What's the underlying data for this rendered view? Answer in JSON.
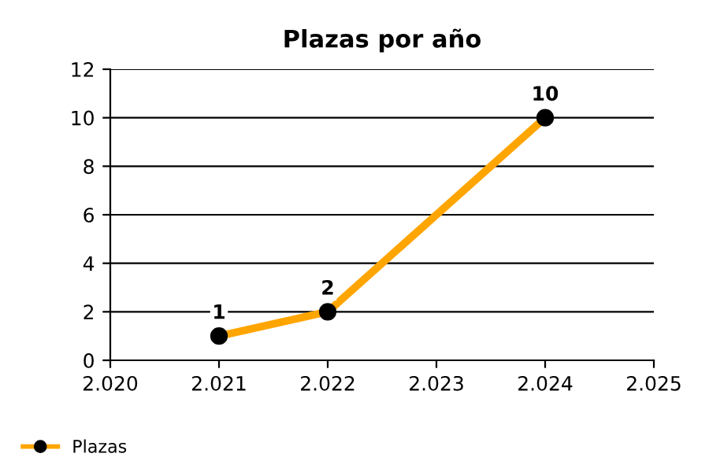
{
  "chart_data": {
    "type": "line",
    "title": "Plazas por año",
    "x": [
      2021,
      2022,
      2024
    ],
    "series": [
      {
        "name": "Plazas",
        "color": "#ffa500",
        "values": [
          1,
          2,
          10
        ]
      }
    ],
    "xlim": [
      2020,
      2025
    ],
    "xticks": [
      {
        "value": 2020,
        "label": "2.020"
      },
      {
        "value": 2021,
        "label": "2.021"
      },
      {
        "value": 2022,
        "label": "2.022"
      },
      {
        "value": 2023,
        "label": "2.023"
      },
      {
        "value": 2024,
        "label": "2.024"
      },
      {
        "value": 2025,
        "label": "2.025"
      }
    ],
    "ylim": [
      0,
      12
    ],
    "yticks": [
      0,
      2,
      4,
      6,
      8,
      10,
      12
    ],
    "grid": "y",
    "legend": "bottom",
    "marker": "circle",
    "line_style": "solid",
    "data_labels": true
  }
}
